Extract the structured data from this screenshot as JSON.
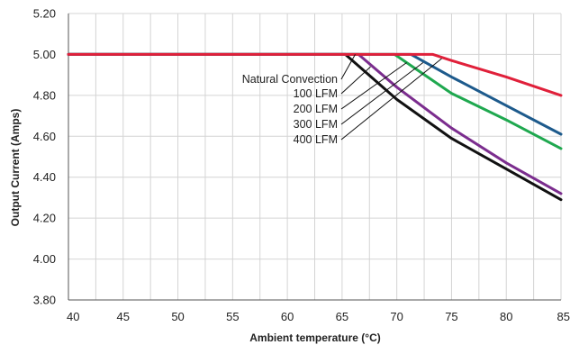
{
  "chart_data": {
    "type": "line",
    "title": "",
    "xlabel": "Ambient temperature (°C)",
    "ylabel": "Output Current (Amps)",
    "xlim": [
      40,
      85
    ],
    "ylim": [
      3.8,
      5.2
    ],
    "grid": true,
    "x_ticks": [
      40,
      45,
      50,
      55,
      60,
      65,
      70,
      75,
      80,
      85
    ],
    "x_tick_labels": [
      "40",
      "45",
      "50",
      "55",
      "60",
      "65",
      "70",
      "75",
      "80",
      "85"
    ],
    "y_ticks": [
      3.8,
      4.0,
      4.2,
      4.4,
      4.6,
      4.8,
      5.0,
      5.2
    ],
    "y_tick_labels": [
      "3.80",
      "4.00",
      "4.20",
      "4.40",
      "4.60",
      "4.80",
      "5.00",
      "5.20"
    ],
    "series": [
      {
        "name": "Natural Convection",
        "color": "#111111",
        "x": [
          40,
          65.3,
          70,
          75,
          80,
          85
        ],
        "y": [
          5.0,
          5.0,
          4.78,
          4.59,
          4.44,
          4.29
        ]
      },
      {
        "name": "100 LFM",
        "color": "#7b2d8e",
        "x": [
          40,
          66.5,
          70,
          75,
          80,
          85
        ],
        "y": [
          5.0,
          5.0,
          4.84,
          4.64,
          4.47,
          4.32
        ]
      },
      {
        "name": "200 LFM",
        "color": "#1fa84f",
        "x": [
          40,
          69.8,
          75,
          80,
          85
        ],
        "y": [
          5.0,
          5.0,
          4.81,
          4.68,
          4.54
        ]
      },
      {
        "name": "300 LFM",
        "color": "#1d5a8c",
        "x": [
          40,
          71.3,
          75,
          80,
          85
        ],
        "y": [
          5.0,
          5.0,
          4.89,
          4.75,
          4.61
        ]
      },
      {
        "name": "400 LFM",
        "color": "#e0203a",
        "x": [
          40,
          73.3,
          75,
          80,
          85
        ],
        "y": [
          5.0,
          5.0,
          4.97,
          4.89,
          4.8
        ]
      }
    ],
    "legend_placement": "center-right (labels with leader lines to curves)"
  }
}
